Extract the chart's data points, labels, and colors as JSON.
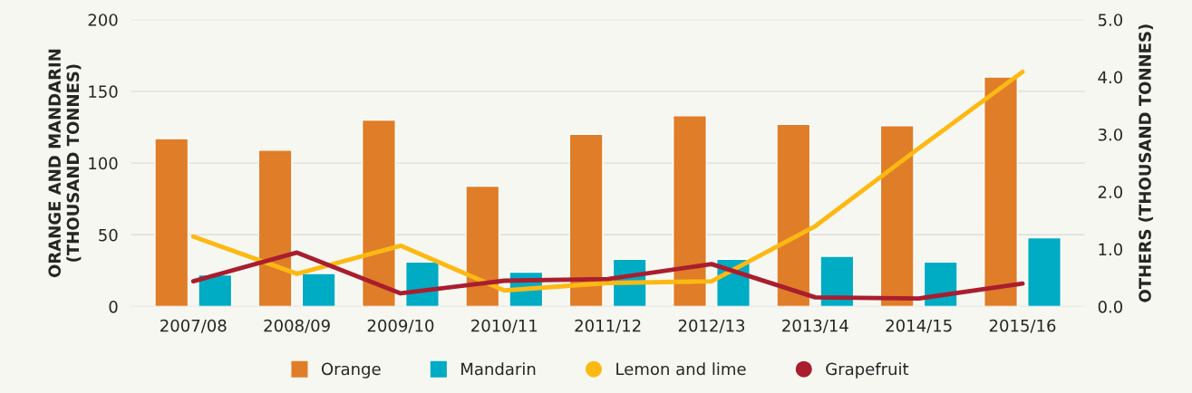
{
  "chart_data": {
    "type": "bar",
    "categories": [
      "2007/08",
      "2008/09",
      "2009/10",
      "2010/11",
      "2011/12",
      "2012/13",
      "2013/14",
      "2014/15",
      "2015/16"
    ],
    "ylabel": "ORANGE AND MANDARIN\n(THOUSAND TONNES)",
    "y2label": "OTHERS (THOUSAND TONNES)",
    "ylim": [
      0,
      200
    ],
    "yticks": [
      0,
      50,
      100,
      150,
      200
    ],
    "y2lim": [
      0,
      5
    ],
    "y2ticks": [
      {
        "value": 0,
        "label": "0.0"
      },
      {
        "value": 1,
        "label": "1.0"
      },
      {
        "value": 2,
        "label": "2.0"
      },
      {
        "value": 3,
        "label": "3.0"
      },
      {
        "value": 4,
        "label": "4.0"
      },
      {
        "value": 5,
        "label": "5.0"
      }
    ],
    "grid": "y",
    "legend": "bottom",
    "series": [
      {
        "name": "Orange",
        "color": "#e07d28",
        "values": [
          117,
          109,
          130,
          84,
          120,
          133,
          127,
          126,
          160
        ]
      },
      {
        "name": "Mandarin",
        "color": "#00abc4",
        "values": [
          22,
          23,
          31,
          24,
          33,
          33,
          35,
          31,
          48
        ]
      },
      {
        "name": "Lemon and lime",
        "type": "line",
        "axis": "y2",
        "color": "#fdb913",
        "values": [
          1.22,
          0.57,
          1.06,
          0.28,
          0.41,
          0.44,
          1.4,
          2.76,
          4.09
        ]
      },
      {
        "name": "Grapefruit",
        "type": "line",
        "axis": "y2",
        "color": "#a91e2f",
        "values": [
          0.44,
          0.94,
          0.23,
          0.45,
          0.48,
          0.74,
          0.16,
          0.14,
          0.4
        ]
      }
    ]
  }
}
